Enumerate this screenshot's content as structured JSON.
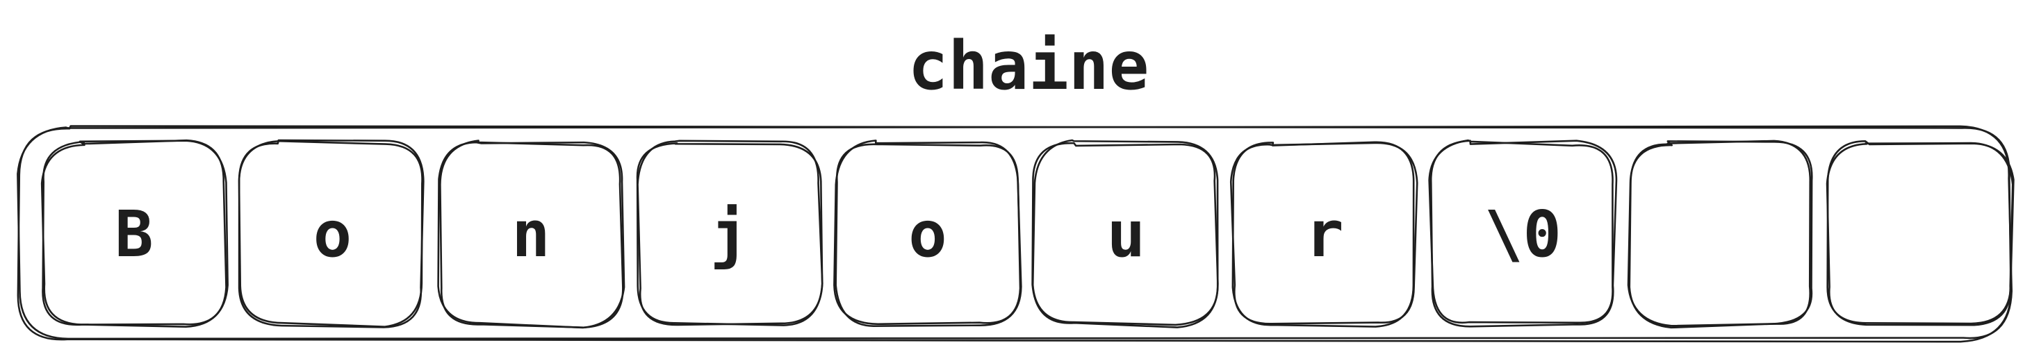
{
  "title": "chaine",
  "cells": [
    {
      "label": "B"
    },
    {
      "label": "o"
    },
    {
      "label": "n"
    },
    {
      "label": "j"
    },
    {
      "label": "o"
    },
    {
      "label": "u"
    },
    {
      "label": "r"
    },
    {
      "label": "\\0"
    },
    {
      "label": ""
    },
    {
      "label": ""
    }
  ]
}
